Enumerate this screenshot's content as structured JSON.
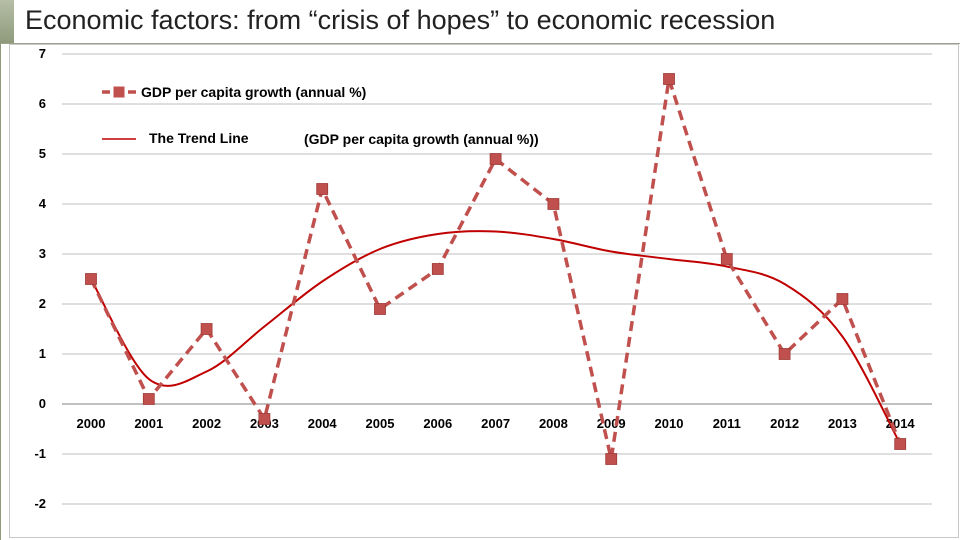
{
  "slide": {
    "title": "Economic factors: from “crisis of hopes” to economic recession"
  },
  "colors": {
    "series": "#c0504d",
    "marker": "#c0504d",
    "trend": "#c00000",
    "grid": "#bfbfbf"
  },
  "chart_data": {
    "type": "line",
    "title": "",
    "xlabel": "",
    "ylabel": "",
    "ylim": [
      -2,
      7
    ],
    "ytick_step": 1,
    "grid": true,
    "categories": [
      "2000",
      "2001",
      "2002",
      "2003",
      "2004",
      "2005",
      "2006",
      "2007",
      "2008",
      "2009",
      "2010",
      "2011",
      "2012",
      "2013",
      "2014"
    ],
    "series": [
      {
        "name": "GDP per capita growth (annual %)",
        "style": "dashed-line-square-markers",
        "values": [
          2.5,
          0.1,
          1.5,
          -0.3,
          4.3,
          1.9,
          2.7,
          4.9,
          4.0,
          -1.1,
          6.5,
          2.9,
          1.0,
          2.1,
          -0.8
        ]
      },
      {
        "name": "The Trend Line",
        "label_suffix": "(GDP per capita growth (annual %))",
        "style": "solid-smooth",
        "values": [
          2.5,
          0.5,
          0.65,
          1.55,
          2.45,
          3.1,
          3.4,
          3.45,
          3.3,
          3.05,
          2.9,
          2.75,
          2.4,
          1.35,
          -0.8
        ]
      }
    ]
  }
}
